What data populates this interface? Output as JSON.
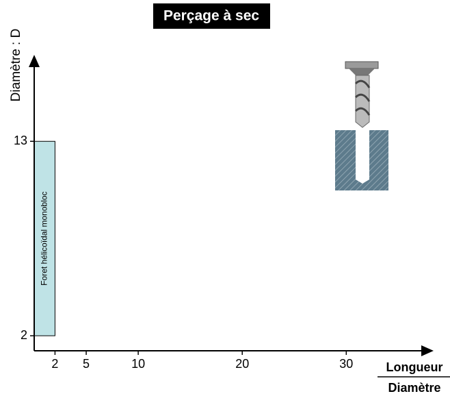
{
  "chart_data": {
    "type": "region",
    "title": "Perçage à sec",
    "y_label": "Diamètre : D",
    "x_label_numerator": "Longueur",
    "x_label_denominator": "Diamètre",
    "xlim": [
      0,
      38
    ],
    "ylim": [
      1.15,
      17.7
    ],
    "xticks": [
      2,
      5,
      10,
      20,
      30
    ],
    "yticks": [
      2,
      13
    ],
    "regions": [
      {
        "label": "Foret hélicoïdal monobloc",
        "x": [
          0,
          2
        ],
        "y": [
          2,
          13
        ],
        "color": "#bfe3e6"
      }
    ]
  }
}
